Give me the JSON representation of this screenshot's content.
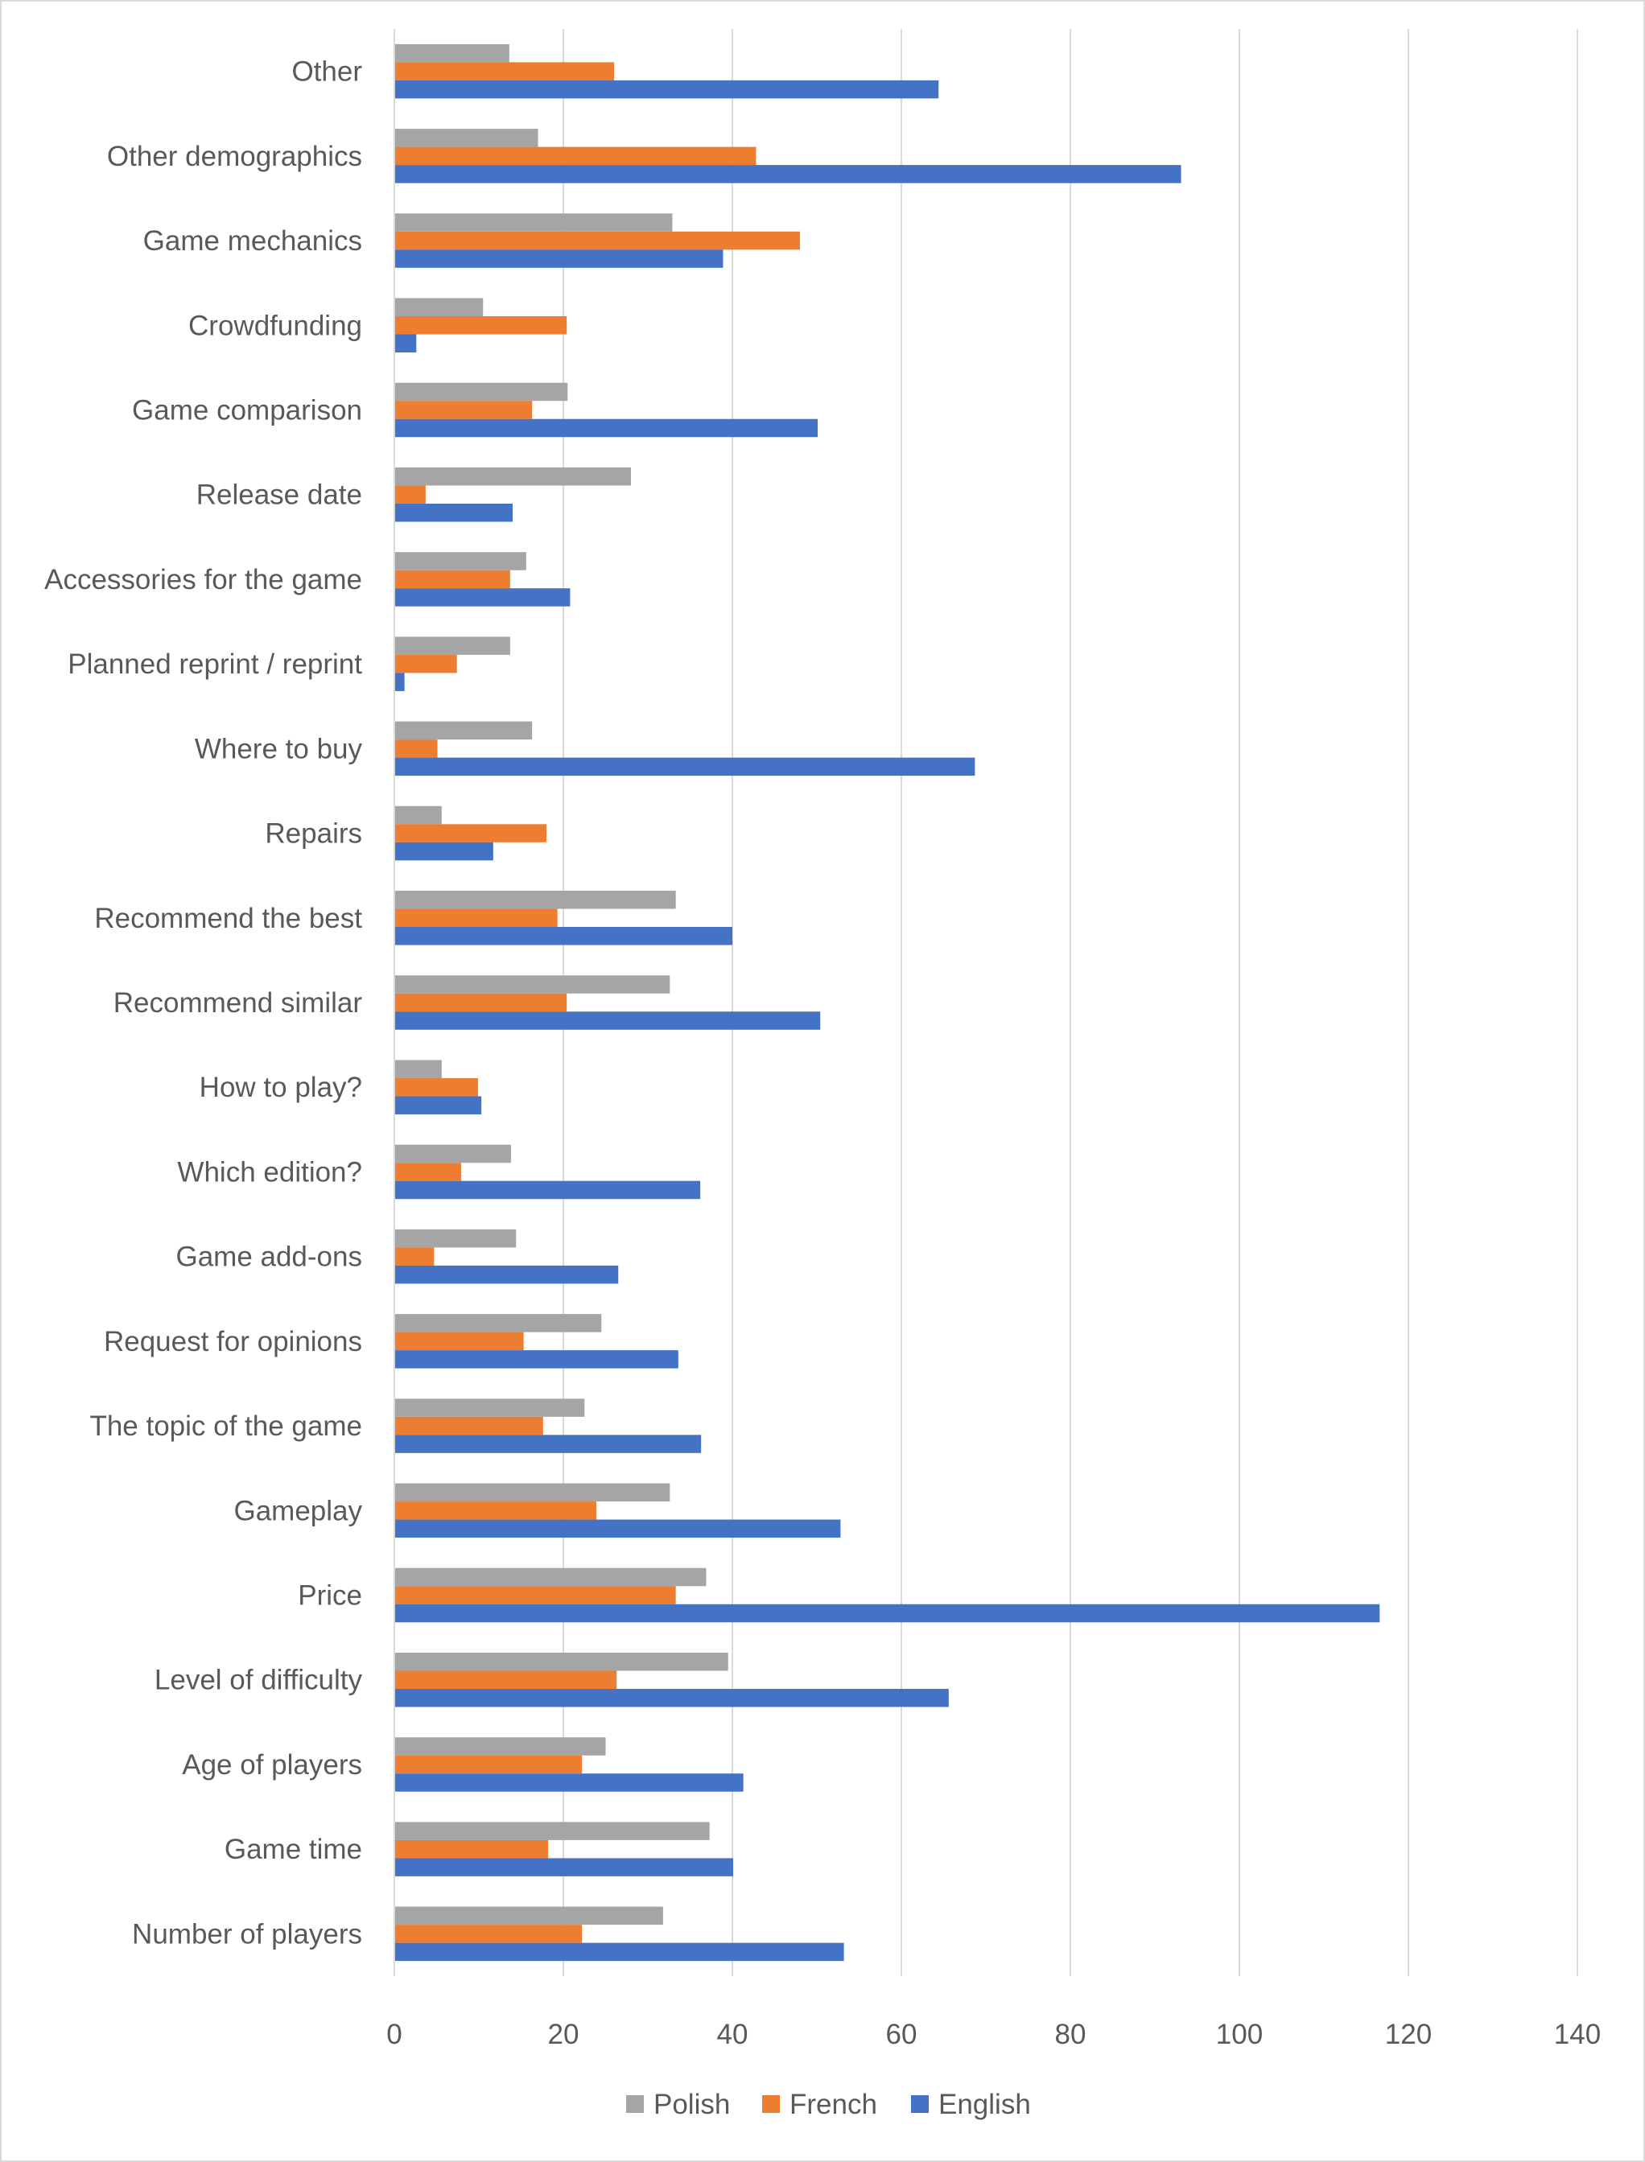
{
  "chart_data": {
    "type": "bar",
    "orientation": "horizontal",
    "categories": [
      "Other",
      "Other demographics",
      "Game mechanics",
      "Crowdfunding",
      "Game comparison",
      "Release date",
      "Accessories for the game",
      "Planned reprint / reprint",
      "Where to buy",
      "Repairs",
      "Recommend the best",
      "Recommend similar",
      "How to play?",
      "Which edition?",
      "Game add-ons",
      "Request for opinions",
      "The topic of the game",
      "Gameplay",
      "Price",
      "Level of difficulty",
      "Age of players",
      "Game time",
      "Number of players"
    ],
    "series": [
      {
        "name": "Polish",
        "color": "#a5a5a5",
        "values": [
          13.6,
          17,
          32.9,
          10.5,
          20.5,
          28,
          15.6,
          13.7,
          16.3,
          5.6,
          33.3,
          32.6,
          5.6,
          13.8,
          14.4,
          24.5,
          22.5,
          32.6,
          36.9,
          39.5,
          25,
          37.3,
          31.8
        ]
      },
      {
        "name": "French",
        "color": "#ed7d31",
        "values": [
          26,
          42.8,
          48,
          20.4,
          16.3,
          3.7,
          13.7,
          7.4,
          5.1,
          18,
          19.3,
          20.4,
          9.9,
          7.9,
          4.7,
          15.3,
          17.6,
          23.9,
          33.3,
          26.3,
          22.2,
          18.2,
          22.2
        ]
      },
      {
        "name": "English",
        "color": "#4472c4",
        "values": [
          64.4,
          93.1,
          38.9,
          2.6,
          50.1,
          14,
          20.8,
          1.2,
          68.7,
          11.7,
          40,
          50.4,
          10.3,
          36.2,
          26.5,
          33.6,
          36.3,
          52.8,
          116.6,
          65.6,
          41.3,
          40.1,
          53.2
        ]
      }
    ],
    "xlim": [
      0,
      140
    ],
    "xticks": [
      "0",
      "20",
      "40",
      "60",
      "80",
      "100",
      "120",
      "140"
    ],
    "grid": true,
    "legend_position": "bottom",
    "title": "",
    "xlabel": "",
    "ylabel": ""
  }
}
